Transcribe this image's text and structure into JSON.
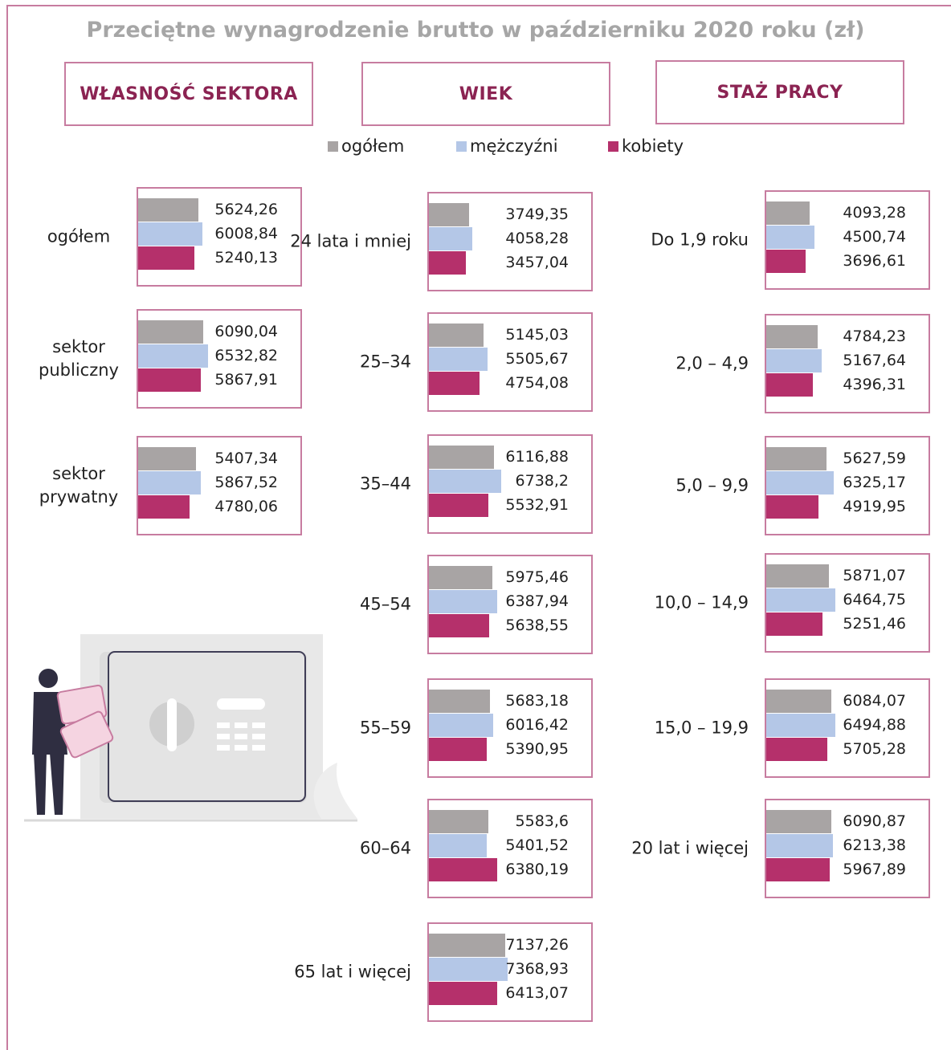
{
  "title": "Przeciętne wynagrodzenie brutto w październiku 2020 roku (zł)",
  "chart_data": [
    {
      "type": "bar",
      "title": "WŁASNOŚĆ SEKTORA",
      "categories": [
        "ogółem",
        "sektor publiczny",
        "sektor prywatny"
      ],
      "series": [
        {
          "name": "ogółem",
          "color": "#a8a4a4",
          "values": [
            5624.26,
            6090.04,
            5407.34
          ],
          "value_labels": [
            "5624,26",
            "6090,04",
            "5407,34"
          ]
        },
        {
          "name": "mężczyźni",
          "color": "#b4c7e7",
          "values": [
            6008.84,
            6532.82,
            5867.52
          ],
          "value_labels": [
            "6008,84",
            "6532,82",
            "5867,52"
          ]
        },
        {
          "name": "kobiety",
          "color": "#b5306b",
          "values": [
            5240.13,
            5867.91,
            4780.06
          ],
          "value_labels": [
            "5240,13",
            "5867,91",
            "4780,06"
          ]
        }
      ]
    },
    {
      "type": "bar",
      "title": "WIEK",
      "categories": [
        "24 lata i mniej",
        "25–34",
        "35–44",
        "45–54",
        "55–59",
        "60–64",
        "65 lat i więcej"
      ],
      "series": [
        {
          "name": "ogółem",
          "color": "#a8a4a4",
          "values": [
            3749.35,
            5145.03,
            6116.88,
            5975.46,
            5683.18,
            5583.6,
            7137.26
          ],
          "value_labels": [
            "3749,35",
            "5145,03",
            "6116,88",
            "5975,46",
            "5683,18",
            "5583,6",
            "7137,26"
          ]
        },
        {
          "name": "mężczyźni",
          "color": "#b4c7e7",
          "values": [
            4058.28,
            5505.67,
            6738.2,
            6387.94,
            6016.42,
            5401.52,
            7368.93
          ],
          "value_labels": [
            "4058,28",
            "5505,67",
            "6738,2",
            "6387,94",
            "6016,42",
            "5401,52",
            "7368,93"
          ]
        },
        {
          "name": "kobiety",
          "color": "#b5306b",
          "values": [
            3457.04,
            4754.08,
            5532.91,
            5638.55,
            5390.95,
            6380.19,
            6413.07
          ],
          "value_labels": [
            "3457,04",
            "4754,08",
            "5532,91",
            "5638,55",
            "5390,95",
            "6380,19",
            "6413,07"
          ]
        }
      ]
    },
    {
      "type": "bar",
      "title": "STAŻ PRACY",
      "categories": [
        "Do 1,9 roku",
        "2,0 –  4,9",
        "5,0 –  9,9",
        "10,0 – 14,9",
        "15,0 – 19,9",
        "20 lat i więcej"
      ],
      "series": [
        {
          "name": "ogółem",
          "color": "#a8a4a4",
          "values": [
            4093.28,
            4784.23,
            5627.59,
            5871.07,
            6084.07,
            6090.87
          ],
          "value_labels": [
            "4093,28",
            "4784,23",
            "5627,59",
            "5871,07",
            "6084,07",
            "6090,87"
          ]
        },
        {
          "name": "mężczyźni",
          "color": "#b4c7e7",
          "values": [
            4500.74,
            5167.64,
            6325.17,
            6464.75,
            6494.88,
            6213.38
          ],
          "value_labels": [
            "4500,74",
            "5167,64",
            "6325,17",
            "6464,75",
            "6494,88",
            "6213,38"
          ]
        },
        {
          "name": "kobiety",
          "color": "#b5306b",
          "values": [
            3696.61,
            4396.31,
            4919.95,
            5251.46,
            5705.28,
            5967.89
          ],
          "value_labels": [
            "3696,61",
            "4396,31",
            "4919,95",
            "5251,46",
            "5705,28",
            "5967,89"
          ]
        }
      ]
    }
  ]
}
